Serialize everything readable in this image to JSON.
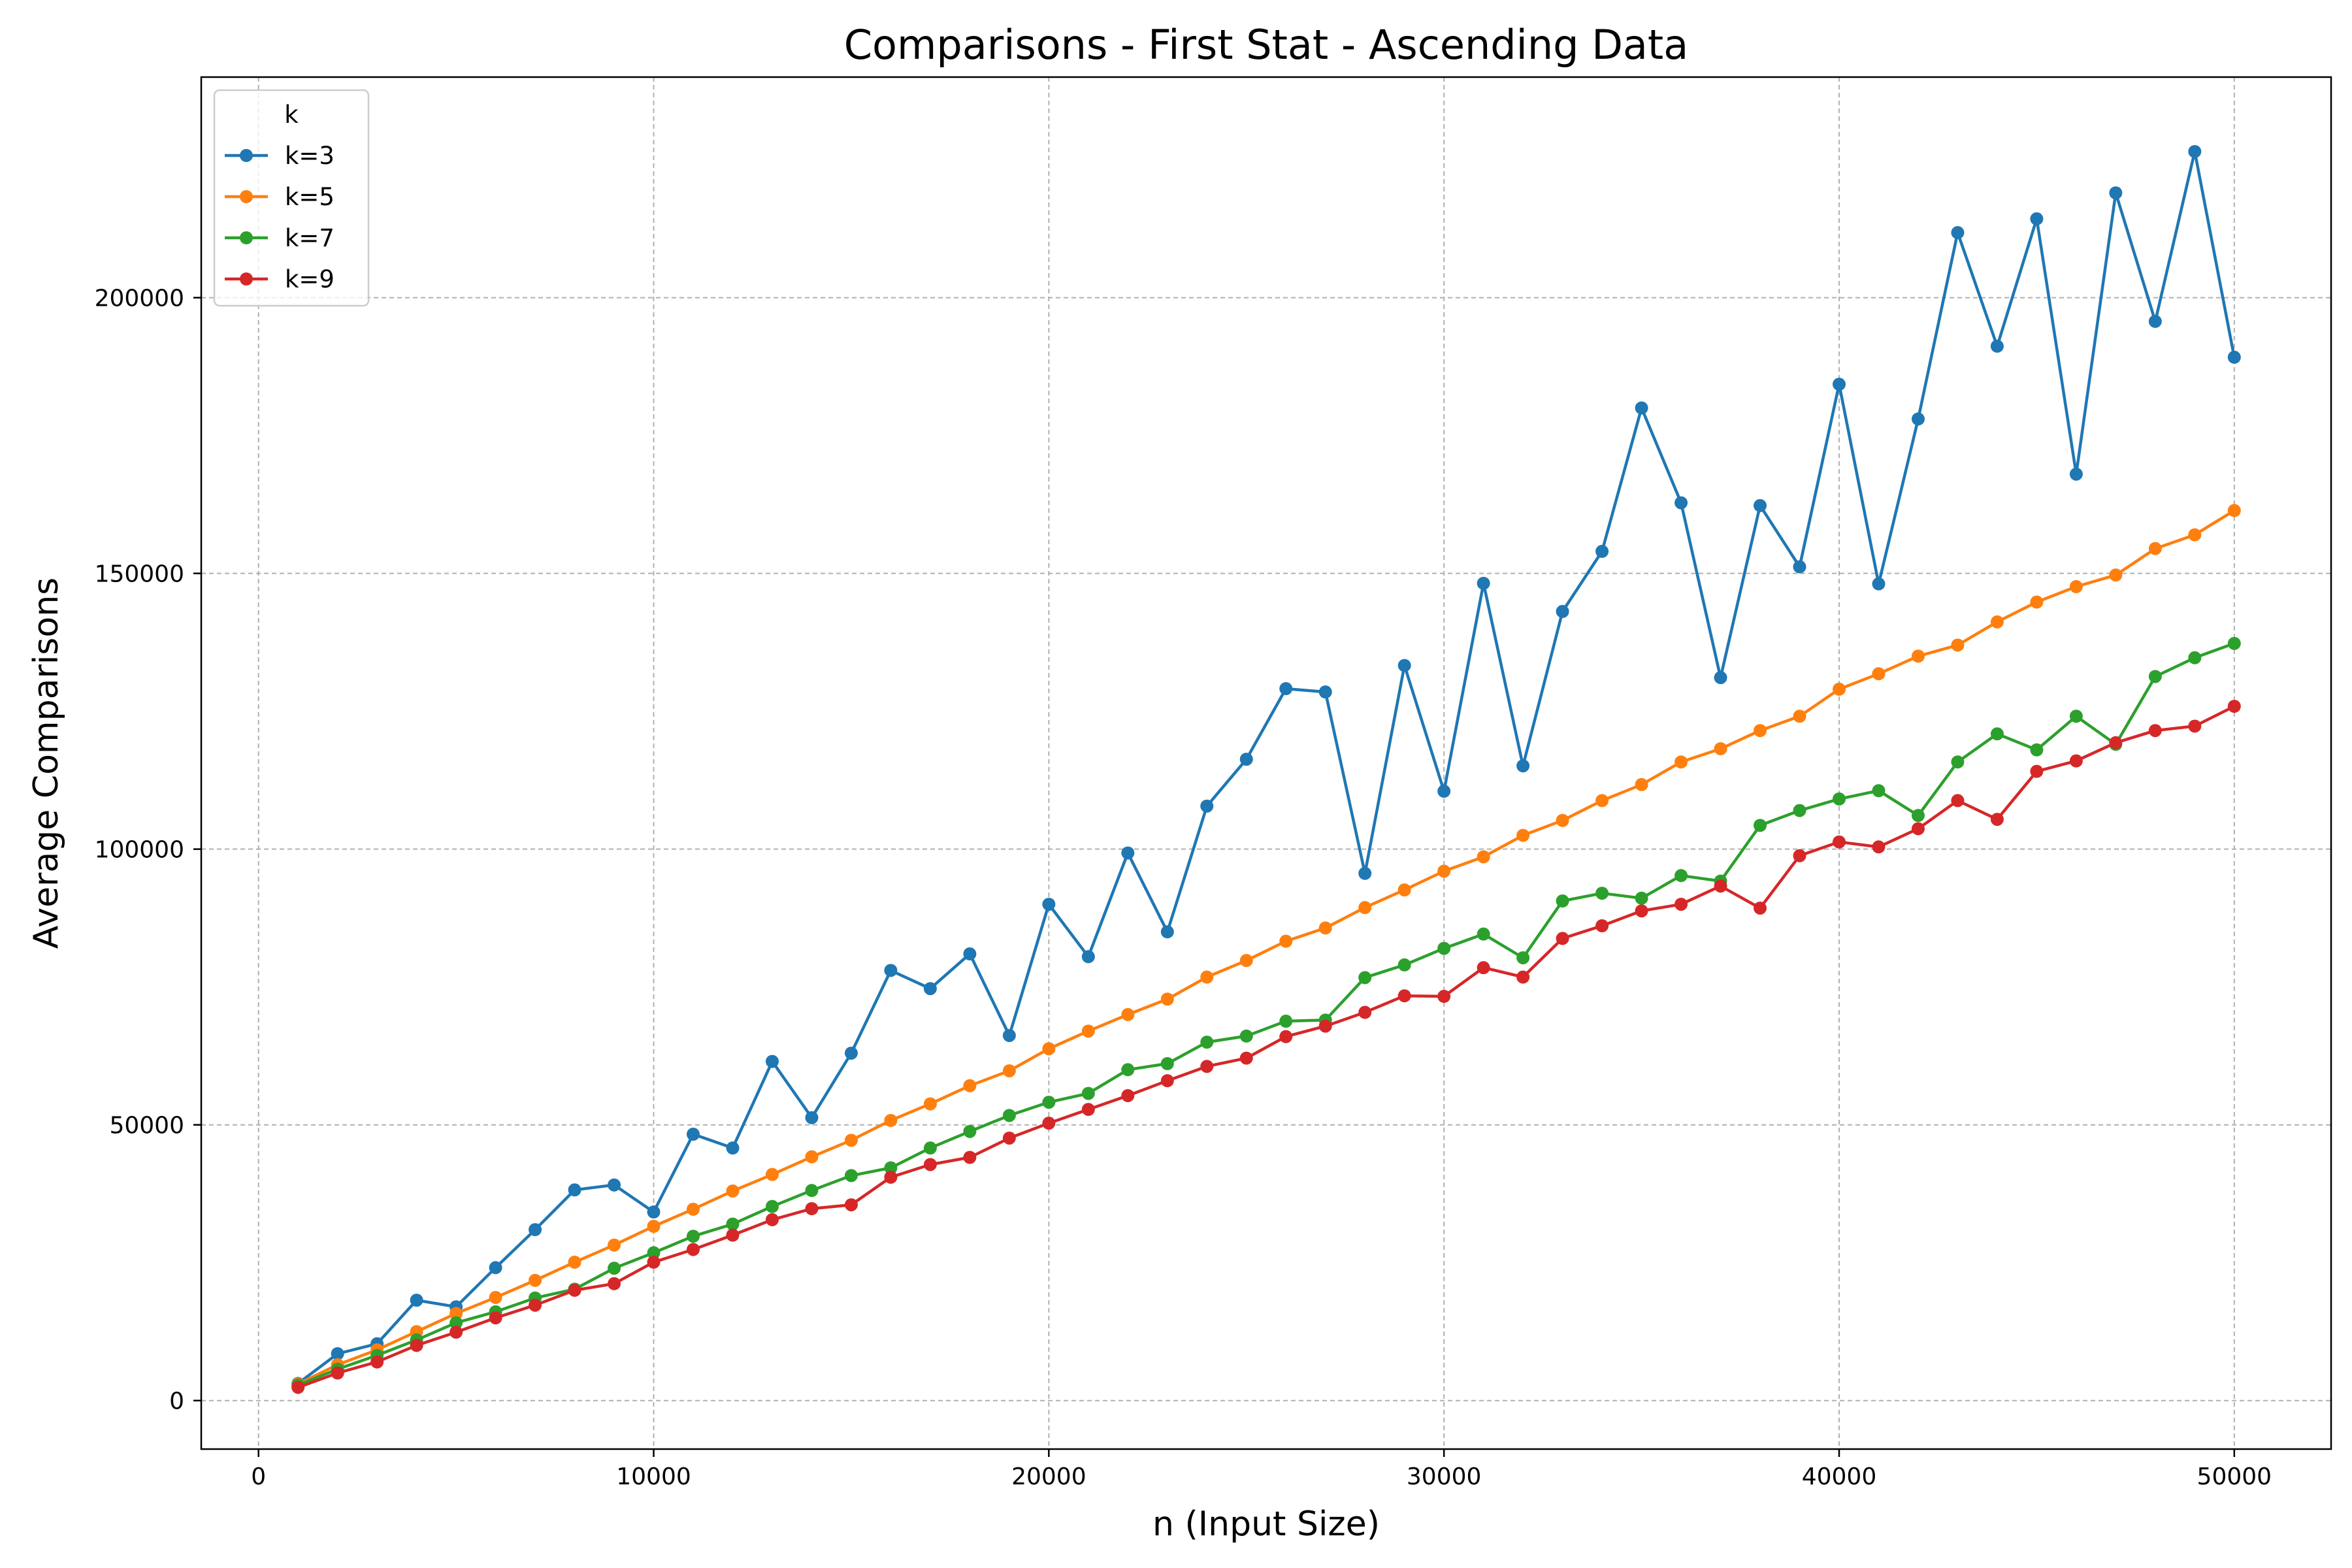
{
  "chart_data": {
    "type": "line",
    "title": "Comparisons - First Stat - Ascending Data",
    "xlabel": "n (Input Size)",
    "ylabel": "Average Comparisons",
    "xlim": [
      -1450,
      52450
    ],
    "ylim": [
      -8800,
      240000
    ],
    "xticks": [
      0,
      10000,
      20000,
      30000,
      40000,
      50000
    ],
    "yticks": [
      0,
      50000,
      100000,
      150000,
      200000
    ],
    "grid": true,
    "legend": {
      "title": "k",
      "placement": "top-left"
    },
    "x": [
      1000,
      2000,
      3000,
      4000,
      5000,
      6000,
      7000,
      8000,
      9000,
      10000,
      11000,
      12000,
      13000,
      14000,
      15000,
      16000,
      17000,
      18000,
      19000,
      20000,
      21000,
      22000,
      23000,
      24000,
      25000,
      26000,
      27000,
      28000,
      29000,
      30000,
      31000,
      32000,
      33000,
      34000,
      35000,
      36000,
      37000,
      38000,
      39000,
      40000,
      41000,
      42000,
      43000,
      44000,
      45000,
      46000,
      47000,
      48000,
      49000,
      50000
    ],
    "series": [
      {
        "name": "k=3",
        "color": "#1f77b4",
        "values": [
          3100,
          8500,
          10300,
          18200,
          17000,
          24100,
          31000,
          38200,
          39100,
          34200,
          48300,
          45800,
          61500,
          51300,
          63000,
          78000,
          74700,
          81000,
          66200,
          90000,
          80500,
          99300,
          85000,
          107800,
          116300,
          129100,
          128500,
          95600,
          133300,
          110500,
          148200,
          115100,
          143100,
          154000,
          180000,
          162800,
          131100,
          162300,
          151200,
          184300,
          148100,
          178000,
          211800,
          191200,
          214300,
          168000,
          219000,
          195700,
          226500,
          189200
        ]
      },
      {
        "name": "k=5",
        "color": "#ff7f0e",
        "values": [
          3000,
          6500,
          9200,
          12500,
          15800,
          18700,
          21800,
          25100,
          28200,
          31600,
          34700,
          38000,
          41000,
          44200,
          47200,
          50800,
          53800,
          57100,
          59800,
          63800,
          67000,
          70000,
          72800,
          76800,
          79800,
          83300,
          85700,
          89400,
          92600,
          96000,
          98600,
          102500,
          105200,
          108800,
          111700,
          115800,
          118200,
          121500,
          124100,
          129000,
          131800,
          135000,
          137000,
          141200,
          144800,
          147600,
          149700,
          154500,
          157000,
          161400
        ]
      },
      {
        "name": "k=7",
        "color": "#2ca02c",
        "values": [
          2800,
          5700,
          8200,
          11000,
          14100,
          16100,
          18600,
          20200,
          24000,
          26800,
          29800,
          32000,
          35200,
          38100,
          40800,
          42200,
          45800,
          48800,
          51700,
          54100,
          55700,
          60000,
          61100,
          65000,
          66100,
          68800,
          69000,
          76700,
          79000,
          82000,
          84600,
          80300,
          90600,
          92000,
          91100,
          95200,
          94200,
          104300,
          107000,
          109100,
          110600,
          106100,
          115800,
          120900,
          118000,
          124100,
          119000,
          131300,
          134700,
          137300
        ]
      },
      {
        "name": "k=9",
        "color": "#d62728",
        "values": [
          2400,
          5000,
          7000,
          10000,
          12400,
          15000,
          17300,
          20000,
          21200,
          25100,
          27400,
          30000,
          32800,
          34800,
          35500,
          40500,
          42800,
          44100,
          47600,
          50300,
          52800,
          55300,
          58000,
          60600,
          62100,
          66000,
          67900,
          70400,
          73400,
          73300,
          78500,
          76800,
          83800,
          86100,
          88800,
          90000,
          93300,
          89300,
          98800,
          101300,
          100400,
          103700,
          108800,
          105400,
          114100,
          116000,
          119300,
          121500,
          122300,
          125900
        ]
      }
    ]
  }
}
